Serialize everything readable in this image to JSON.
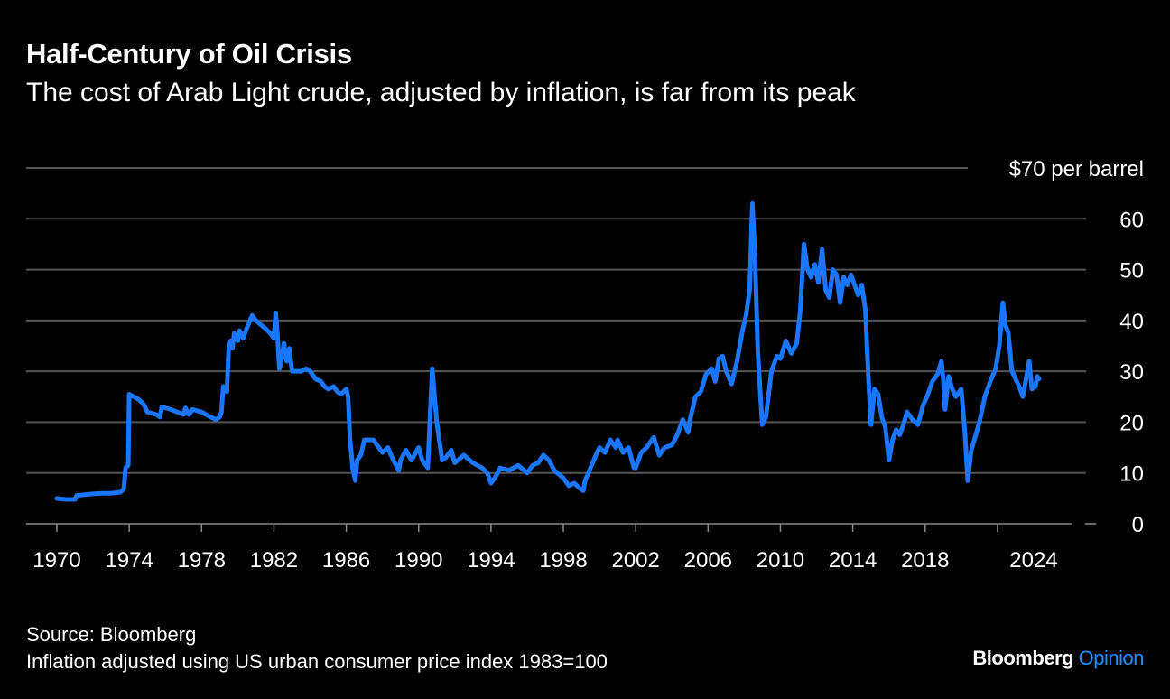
{
  "header": {
    "title": "Half-Century of Oil Crisis",
    "subtitle": "The cost of Arab Light crude, adjusted by inflation, is far from its peak"
  },
  "footer": {
    "source": "Source: Bloomberg",
    "note": "Inflation adjusted using US urban consumer price index 1983=100",
    "brand_main": "Bloomberg",
    "brand_accent": "Opinion"
  },
  "colors": {
    "background": "#000000",
    "line": "#1A75FF",
    "grid": "#555555",
    "text": "#FFFFFF",
    "brand_accent": "#1F8FFF"
  },
  "chart_data": {
    "type": "line",
    "title": "Half-Century of Oil Crisis",
    "subtitle": "The cost of Arab Light crude, adjusted by inflation, is far from its peak",
    "xlabel": "",
    "ylabel": "$70 per barrel",
    "ylim": [
      0,
      70
    ],
    "xlim": [
      1970,
      2024.4
    ],
    "y_ticks": [
      {
        "value": 70,
        "label": "$70 per barrel"
      },
      {
        "value": 60,
        "label": "60"
      },
      {
        "value": 50,
        "label": "50"
      },
      {
        "value": 40,
        "label": "40"
      },
      {
        "value": 30,
        "label": "30"
      },
      {
        "value": 20,
        "label": "20"
      },
      {
        "value": 10,
        "label": "10"
      },
      {
        "value": 0,
        "label": "0"
      }
    ],
    "x_ticks": [
      {
        "value": 1970,
        "label": "1970"
      },
      {
        "value": 1974,
        "label": "1974"
      },
      {
        "value": 1978,
        "label": "1978"
      },
      {
        "value": 1982,
        "label": "1982"
      },
      {
        "value": 1986,
        "label": "1986"
      },
      {
        "value": 1990,
        "label": "1990"
      },
      {
        "value": 1994,
        "label": "1994"
      },
      {
        "value": 1998,
        "label": "1998"
      },
      {
        "value": 2002,
        "label": "2002"
      },
      {
        "value": 2006,
        "label": "2006"
      },
      {
        "value": 2010,
        "label": "2010"
      },
      {
        "value": 2014,
        "label": "2014"
      },
      {
        "value": 2018,
        "label": "2018"
      },
      {
        "value": 2024,
        "label": "2024"
      }
    ],
    "x_tick_marks": [
      1970,
      1974,
      1978,
      1982,
      1986,
      1990,
      1994,
      1998,
      2002,
      2006,
      2010,
      2014,
      2018,
      2022
    ],
    "grid": true,
    "series": [
      {
        "name": "Arab Light crude (inflation adjusted)",
        "points": [
          [
            1970.0,
            5.0
          ],
          [
            1970.5,
            4.8
          ],
          [
            1971.0,
            4.8
          ],
          [
            1971.1,
            5.6
          ],
          [
            1971.5,
            5.7
          ],
          [
            1972.0,
            5.9
          ],
          [
            1972.5,
            6.0
          ],
          [
            1973.0,
            6.0
          ],
          [
            1973.5,
            6.2
          ],
          [
            1973.7,
            6.8
          ],
          [
            1973.8,
            11.0
          ],
          [
            1973.95,
            11.5
          ],
          [
            1974.0,
            25.5
          ],
          [
            1974.5,
            24.5
          ],
          [
            1974.8,
            23.5
          ],
          [
            1975.0,
            22.0
          ],
          [
            1975.5,
            21.5
          ],
          [
            1975.7,
            21.0
          ],
          [
            1975.8,
            23.0
          ],
          [
            1976.3,
            22.5
          ],
          [
            1976.8,
            21.8
          ],
          [
            1977.0,
            21.5
          ],
          [
            1977.1,
            22.8
          ],
          [
            1977.3,
            21.5
          ],
          [
            1977.5,
            22.5
          ],
          [
            1978.0,
            22.0
          ],
          [
            1978.5,
            21.0
          ],
          [
            1978.8,
            20.5
          ],
          [
            1979.0,
            21.0
          ],
          [
            1979.1,
            22.0
          ],
          [
            1979.2,
            27.0
          ],
          [
            1979.4,
            26.0
          ],
          [
            1979.5,
            34.5
          ],
          [
            1979.6,
            36.0
          ],
          [
            1979.7,
            34.5
          ],
          [
            1979.8,
            37.5
          ],
          [
            1980.0,
            36.0
          ],
          [
            1980.1,
            38.0
          ],
          [
            1980.3,
            36.5
          ],
          [
            1980.5,
            38.5
          ],
          [
            1980.8,
            41.0
          ],
          [
            1981.0,
            40.0
          ],
          [
            1981.5,
            38.5
          ],
          [
            1981.8,
            37.5
          ],
          [
            1982.0,
            36.5
          ],
          [
            1982.1,
            41.5
          ],
          [
            1982.2,
            37.0
          ],
          [
            1982.3,
            30.5
          ],
          [
            1982.4,
            32.0
          ],
          [
            1982.55,
            35.5
          ],
          [
            1982.7,
            32.0
          ],
          [
            1982.85,
            34.5
          ],
          [
            1983.0,
            30.0
          ],
          [
            1983.5,
            30.0
          ],
          [
            1983.8,
            30.5
          ],
          [
            1984.0,
            30.0
          ],
          [
            1984.3,
            28.5
          ],
          [
            1984.6,
            28.0
          ],
          [
            1984.8,
            27.0
          ],
          [
            1985.0,
            26.5
          ],
          [
            1985.3,
            27.0
          ],
          [
            1985.5,
            26.0
          ],
          [
            1985.7,
            25.5
          ],
          [
            1986.0,
            26.5
          ],
          [
            1986.1,
            25.0
          ],
          [
            1986.2,
            17.0
          ],
          [
            1986.35,
            11.0
          ],
          [
            1986.5,
            8.5
          ],
          [
            1986.6,
            12.5
          ],
          [
            1986.8,
            13.5
          ],
          [
            1987.0,
            16.5
          ],
          [
            1987.5,
            16.5
          ],
          [
            1988.0,
            14.0
          ],
          [
            1988.3,
            15.0
          ],
          [
            1988.6,
            12.5
          ],
          [
            1988.9,
            10.5
          ],
          [
            1989.0,
            12.5
          ],
          [
            1989.3,
            14.5
          ],
          [
            1989.6,
            12.5
          ],
          [
            1990.0,
            15.0
          ],
          [
            1990.2,
            12.5
          ],
          [
            1990.5,
            11.0
          ],
          [
            1990.75,
            30.5
          ],
          [
            1991.0,
            20.0
          ],
          [
            1991.3,
            12.5
          ],
          [
            1991.5,
            13.0
          ],
          [
            1991.8,
            14.5
          ],
          [
            1992.0,
            12.0
          ],
          [
            1992.5,
            13.5
          ],
          [
            1993.0,
            12.0
          ],
          [
            1993.5,
            11.0
          ],
          [
            1993.8,
            10.0
          ],
          [
            1994.0,
            8.0
          ],
          [
            1994.3,
            9.5
          ],
          [
            1994.5,
            11.0
          ],
          [
            1995.0,
            10.5
          ],
          [
            1995.5,
            11.5
          ],
          [
            1996.0,
            10.0
          ],
          [
            1996.3,
            11.5
          ],
          [
            1996.6,
            12.0
          ],
          [
            1996.9,
            13.5
          ],
          [
            1997.2,
            12.5
          ],
          [
            1997.5,
            10.5
          ],
          [
            1998.0,
            9.0
          ],
          [
            1998.3,
            7.5
          ],
          [
            1998.6,
            8.0
          ],
          [
            1998.9,
            7.0
          ],
          [
            1999.1,
            6.5
          ],
          [
            1999.2,
            8.5
          ],
          [
            1999.5,
            11.0
          ],
          [
            1999.8,
            13.5
          ],
          [
            2000.0,
            15.0
          ],
          [
            2000.3,
            14.0
          ],
          [
            2000.6,
            16.5
          ],
          [
            2000.9,
            15.0
          ],
          [
            2001.0,
            16.5
          ],
          [
            2001.3,
            14.0
          ],
          [
            2001.6,
            15.0
          ],
          [
            2001.9,
            11.0
          ],
          [
            2002.0,
            11.0
          ],
          [
            2002.3,
            14.0
          ],
          [
            2002.6,
            15.0
          ],
          [
            2002.9,
            16.5
          ],
          [
            2003.0,
            17.0
          ],
          [
            2003.3,
            13.5
          ],
          [
            2003.6,
            15.0
          ],
          [
            2004.0,
            15.5
          ],
          [
            2004.3,
            17.5
          ],
          [
            2004.6,
            20.5
          ],
          [
            2004.9,
            18.0
          ],
          [
            2005.0,
            20.5
          ],
          [
            2005.3,
            25.0
          ],
          [
            2005.6,
            26.0
          ],
          [
            2005.9,
            29.5
          ],
          [
            2006.2,
            30.5
          ],
          [
            2006.4,
            28.0
          ],
          [
            2006.6,
            32.5
          ],
          [
            2006.8,
            33.0
          ],
          [
            2007.0,
            30.0
          ],
          [
            2007.3,
            27.5
          ],
          [
            2007.6,
            32.0
          ],
          [
            2007.9,
            38.0
          ],
          [
            2008.1,
            41.0
          ],
          [
            2008.3,
            46.0
          ],
          [
            2008.45,
            63.0
          ],
          [
            2008.6,
            52.0
          ],
          [
            2008.75,
            34.0
          ],
          [
            2008.9,
            25.0
          ],
          [
            2009.0,
            19.5
          ],
          [
            2009.2,
            21.0
          ],
          [
            2009.5,
            30.0
          ],
          [
            2009.8,
            33.0
          ],
          [
            2010.0,
            32.5
          ],
          [
            2010.3,
            36.0
          ],
          [
            2010.6,
            33.5
          ],
          [
            2010.9,
            35.5
          ],
          [
            2011.1,
            42.0
          ],
          [
            2011.3,
            55.0
          ],
          [
            2011.5,
            50.0
          ],
          [
            2011.7,
            48.5
          ],
          [
            2011.9,
            51.0
          ],
          [
            2012.1,
            47.5
          ],
          [
            2012.3,
            54.0
          ],
          [
            2012.5,
            46.0
          ],
          [
            2012.7,
            44.5
          ],
          [
            2012.9,
            50.0
          ],
          [
            2013.1,
            49.0
          ],
          [
            2013.3,
            43.5
          ],
          [
            2013.5,
            48.5
          ],
          [
            2013.7,
            47.0
          ],
          [
            2013.9,
            49.0
          ],
          [
            2014.1,
            47.0
          ],
          [
            2014.3,
            45.0
          ],
          [
            2014.5,
            47.0
          ],
          [
            2014.7,
            42.0
          ],
          [
            2014.85,
            30.0
          ],
          [
            2015.0,
            19.5
          ],
          [
            2015.2,
            26.5
          ],
          [
            2015.4,
            25.5
          ],
          [
            2015.6,
            21.0
          ],
          [
            2015.8,
            19.0
          ],
          [
            2016.0,
            12.5
          ],
          [
            2016.2,
            16.5
          ],
          [
            2016.4,
            18.5
          ],
          [
            2016.6,
            17.5
          ],
          [
            2016.8,
            19.5
          ],
          [
            2017.0,
            22.0
          ],
          [
            2017.3,
            20.5
          ],
          [
            2017.6,
            19.5
          ],
          [
            2017.9,
            23.5
          ],
          [
            2018.1,
            25.0
          ],
          [
            2018.4,
            28.0
          ],
          [
            2018.7,
            29.5
          ],
          [
            2018.9,
            32.0
          ],
          [
            2019.0,
            28.5
          ],
          [
            2019.1,
            22.5
          ],
          [
            2019.3,
            29.0
          ],
          [
            2019.5,
            26.5
          ],
          [
            2019.7,
            25.0
          ],
          [
            2019.9,
            26.0
          ],
          [
            2020.0,
            26.5
          ],
          [
            2020.2,
            18.0
          ],
          [
            2020.35,
            8.5
          ],
          [
            2020.55,
            14.5
          ],
          [
            2020.8,
            17.5
          ],
          [
            2021.0,
            20.0
          ],
          [
            2021.3,
            25.0
          ],
          [
            2021.6,
            28.0
          ],
          [
            2021.9,
            30.5
          ],
          [
            2022.1,
            35.0
          ],
          [
            2022.3,
            43.5
          ],
          [
            2022.45,
            39.0
          ],
          [
            2022.6,
            37.5
          ],
          [
            2022.8,
            30.0
          ],
          [
            2023.0,
            28.5
          ],
          [
            2023.2,
            27.0
          ],
          [
            2023.4,
            25.0
          ],
          [
            2023.6,
            29.0
          ],
          [
            2023.75,
            32.0
          ],
          [
            2023.9,
            26.5
          ],
          [
            2024.1,
            27.0
          ],
          [
            2024.2,
            29.0
          ],
          [
            2024.3,
            28.5
          ]
        ]
      }
    ]
  }
}
